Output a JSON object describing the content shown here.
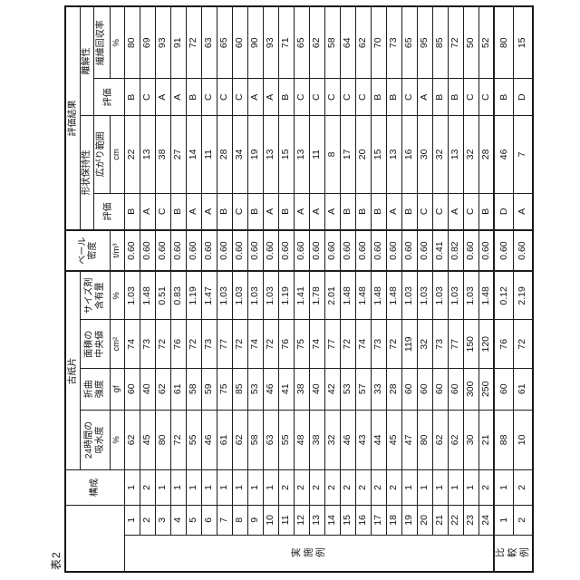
{
  "caption": "表2",
  "header": {
    "kosei": "構成",
    "koshihen": "古紙片",
    "kyusui1": "24時間の",
    "kyusui2": "吸水度",
    "ori1": "折曲",
    "ori2": "強度",
    "menseki1": "面積の",
    "menseki2": "中央値",
    "saizu1": "サイズ剤",
    "saizu2": "含有量",
    "bale1": "ベール",
    "bale2": "密度",
    "result": "評価結果",
    "keijo_group": "形状保持性",
    "rikai_group": "離解性",
    "hyoka_keijo": "評価",
    "hyoka_rikai": "評価",
    "hirogari": "広がり範囲",
    "kaishu": "繊維回収率"
  },
  "units": {
    "kyusui": "%",
    "ori": "gf",
    "menseki": "cm²",
    "saizu": "%",
    "bale": "t/m³",
    "hirogari": "cm",
    "kaishu": "%"
  },
  "groups": [
    {
      "label": "実施例",
      "rows": [
        {
          "no": "1",
          "kosei": "1",
          "kyusui": "62",
          "ori": "60",
          "menseki": "74",
          "saizu": "1.03",
          "bale": "0.60",
          "keijo": "B",
          "hirogari": "22",
          "rikai": "B",
          "kaishu": "80"
        },
        {
          "no": "2",
          "kosei": "2",
          "kyusui": "45",
          "ori": "40",
          "menseki": "73",
          "saizu": "1.48",
          "bale": "0.60",
          "keijo": "A",
          "hirogari": "13",
          "rikai": "C",
          "kaishu": "69"
        },
        {
          "no": "3",
          "kosei": "1",
          "kyusui": "80",
          "ori": "62",
          "menseki": "72",
          "saizu": "0.51",
          "bale": "0.60",
          "keijo": "C",
          "hirogari": "38",
          "rikai": "A",
          "kaishu": "93"
        },
        {
          "no": "4",
          "kosei": "1",
          "kyusui": "72",
          "ori": "61",
          "menseki": "76",
          "saizu": "0.83",
          "bale": "0.60",
          "keijo": "B",
          "hirogari": "27",
          "rikai": "A",
          "kaishu": "91"
        },
        {
          "no": "5",
          "kosei": "1",
          "kyusui": "55",
          "ori": "58",
          "menseki": "72",
          "saizu": "1.19",
          "bale": "0.60",
          "keijo": "A",
          "hirogari": "14",
          "rikai": "B",
          "kaishu": "72"
        },
        {
          "no": "6",
          "kosei": "1",
          "kyusui": "46",
          "ori": "59",
          "menseki": "73",
          "saizu": "1.47",
          "bale": "0.60",
          "keijo": "A",
          "hirogari": "11",
          "rikai": "C",
          "kaishu": "63"
        },
        {
          "no": "7",
          "kosei": "1",
          "kyusui": "61",
          "ori": "75",
          "menseki": "77",
          "saizu": "1.03",
          "bale": "0.60",
          "keijo": "B",
          "hirogari": "28",
          "rikai": "C",
          "kaishu": "65"
        },
        {
          "no": "8",
          "kosei": "1",
          "kyusui": "62",
          "ori": "85",
          "menseki": "72",
          "saizu": "1.03",
          "bale": "0.60",
          "keijo": "C",
          "hirogari": "34",
          "rikai": "C",
          "kaishu": "60"
        },
        {
          "no": "9",
          "kosei": "1",
          "kyusui": "58",
          "ori": "53",
          "menseki": "74",
          "saizu": "1.03",
          "bale": "0.60",
          "keijo": "B",
          "hirogari": "19",
          "rikai": "A",
          "kaishu": "90"
        },
        {
          "no": "10",
          "kosei": "1",
          "kyusui": "63",
          "ori": "46",
          "menseki": "72",
          "saizu": "1.03",
          "bale": "0.60",
          "keijo": "A",
          "hirogari": "13",
          "rikai": "A",
          "kaishu": "93"
        },
        {
          "no": "11",
          "kosei": "2",
          "kyusui": "55",
          "ori": "41",
          "menseki": "76",
          "saizu": "1.19",
          "bale": "0.60",
          "keijo": "B",
          "hirogari": "15",
          "rikai": "B",
          "kaishu": "71"
        },
        {
          "no": "12",
          "kosei": "2",
          "kyusui": "48",
          "ori": "38",
          "menseki": "75",
          "saizu": "1.41",
          "bale": "0.60",
          "keijo": "A",
          "hirogari": "13",
          "rikai": "C",
          "kaishu": "65"
        },
        {
          "no": "13",
          "kosei": "2",
          "kyusui": "38",
          "ori": "40",
          "menseki": "74",
          "saizu": "1.78",
          "bale": "0.60",
          "keijo": "A",
          "hirogari": "11",
          "rikai": "C",
          "kaishu": "62"
        },
        {
          "no": "14",
          "kosei": "2",
          "kyusui": "32",
          "ori": "42",
          "menseki": "77",
          "saizu": "2.01",
          "bale": "0.60",
          "keijo": "A",
          "hirogari": "8",
          "rikai": "C",
          "kaishu": "58"
        },
        {
          "no": "15",
          "kosei": "2",
          "kyusui": "46",
          "ori": "53",
          "menseki": "72",
          "saizu": "1.48",
          "bale": "0.60",
          "keijo": "B",
          "hirogari": "17",
          "rikai": "C",
          "kaishu": "64"
        },
        {
          "no": "16",
          "kosei": "2",
          "kyusui": "43",
          "ori": "57",
          "menseki": "74",
          "saizu": "1.48",
          "bale": "0.60",
          "keijo": "B",
          "hirogari": "20",
          "rikai": "C",
          "kaishu": "62"
        },
        {
          "no": "17",
          "kosei": "2",
          "kyusui": "44",
          "ori": "33",
          "menseki": "73",
          "saizu": "1.48",
          "bale": "0.60",
          "keijo": "B",
          "hirogari": "15",
          "rikai": "B",
          "kaishu": "70"
        },
        {
          "no": "18",
          "kosei": "2",
          "kyusui": "45",
          "ori": "28",
          "menseki": "72",
          "saizu": "1.48",
          "bale": "0.60",
          "keijo": "A",
          "hirogari": "13",
          "rikai": "B",
          "kaishu": "73"
        },
        {
          "no": "19",
          "kosei": "1",
          "kyusui": "47",
          "ori": "60",
          "menseki": "119",
          "saizu": "1.03",
          "bale": "0.60",
          "keijo": "B",
          "hirogari": "16",
          "rikai": "C",
          "kaishu": "65"
        },
        {
          "no": "20",
          "kosei": "1",
          "kyusui": "80",
          "ori": "60",
          "menseki": "32",
          "saizu": "1.03",
          "bale": "0.60",
          "keijo": "C",
          "hirogari": "30",
          "rikai": "A",
          "kaishu": "95"
        },
        {
          "no": "21",
          "kosei": "1",
          "kyusui": "62",
          "ori": "60",
          "menseki": "73",
          "saizu": "1.03",
          "bale": "0.41",
          "keijo": "C",
          "hirogari": "32",
          "rikai": "B",
          "kaishu": "85"
        },
        {
          "no": "22",
          "kosei": "1",
          "kyusui": "62",
          "ori": "60",
          "menseki": "77",
          "saizu": "1.03",
          "bale": "0.82",
          "keijo": "A",
          "hirogari": "13",
          "rikai": "B",
          "kaishu": "72"
        },
        {
          "no": "23",
          "kosei": "1",
          "kyusui": "30",
          "ori": "300",
          "menseki": "150",
          "saizu": "1.03",
          "bale": "0.60",
          "keijo": "C",
          "hirogari": "32",
          "rikai": "C",
          "kaishu": "50"
        },
        {
          "no": "24",
          "kosei": "2",
          "kyusui": "21",
          "ori": "250",
          "menseki": "120",
          "saizu": "1.48",
          "bale": "0.60",
          "keijo": "B",
          "hirogari": "28",
          "rikai": "C",
          "kaishu": "52"
        }
      ]
    },
    {
      "label": "比較例",
      "rows": [
        {
          "no": "1",
          "kosei": "1",
          "kyusui": "88",
          "ori": "60",
          "menseki": "76",
          "saizu": "0.12",
          "bale": "0.60",
          "keijo": "D",
          "hirogari": "46",
          "rikai": "B",
          "kaishu": "80"
        },
        {
          "no": "2",
          "kosei": "2",
          "kyusui": "10",
          "ori": "61",
          "menseki": "72",
          "saizu": "2.19",
          "bale": "0.60",
          "keijo": "A",
          "hirogari": "7",
          "rikai": "D",
          "kaishu": "15"
        }
      ]
    }
  ]
}
